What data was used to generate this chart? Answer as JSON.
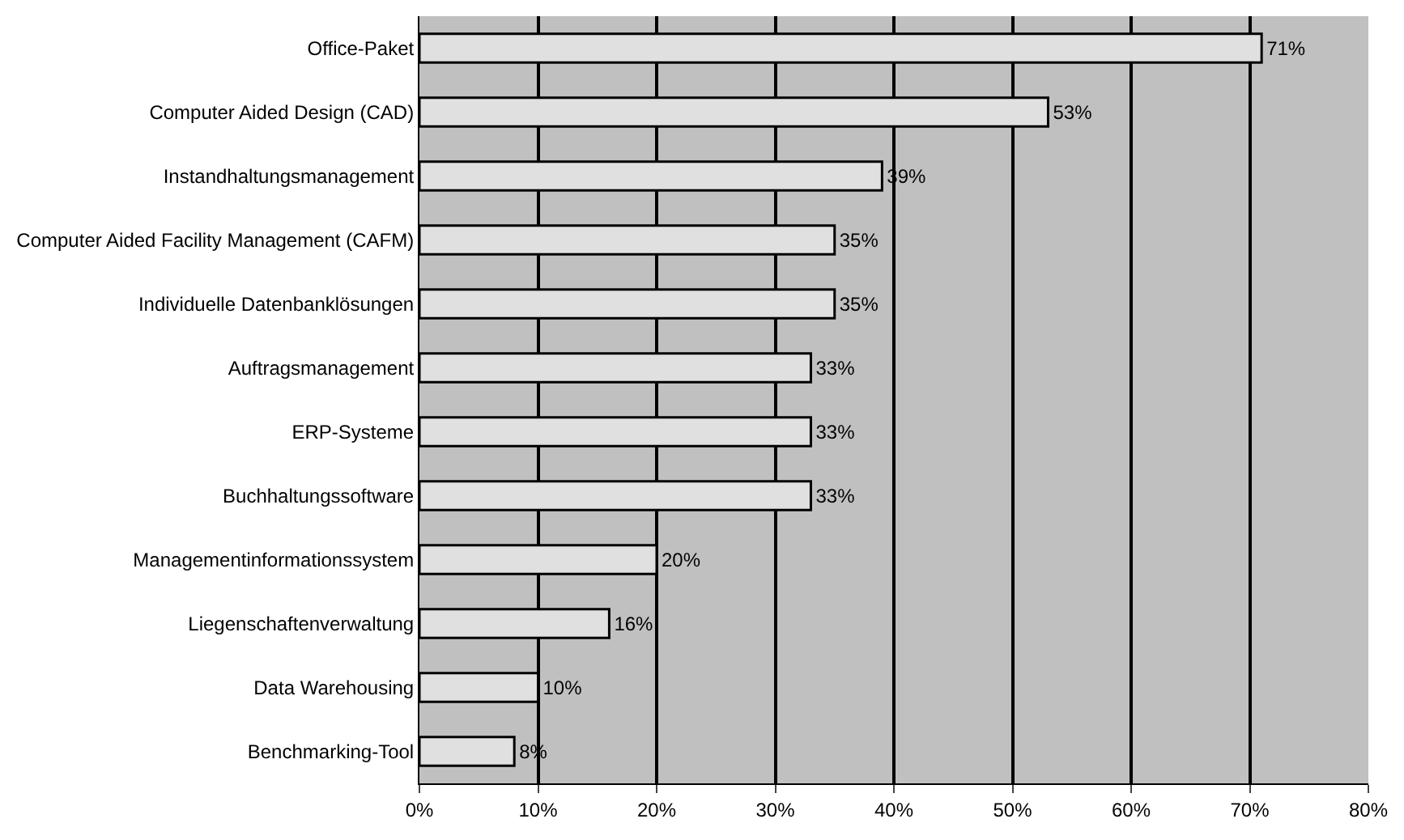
{
  "chart_data": {
    "type": "bar",
    "orientation": "horizontal",
    "categories": [
      "Office-Paket",
      "Computer Aided Design (CAD)",
      "Instandhaltungsmanagement",
      "Computer Aided Facility Management (CAFM)",
      "Individuelle Datenbanklösungen",
      "Auftragsmanagement",
      "ERP-Systeme",
      "Buchhaltungssoftware",
      "Managementinformationssystem",
      "Liegenschaftenverwaltung",
      "Data Warehousing",
      "Benchmarking-Tool"
    ],
    "values": [
      71,
      53,
      39,
      35,
      35,
      33,
      33,
      33,
      20,
      16,
      10,
      8
    ],
    "value_labels": [
      "71%",
      "53%",
      "39%",
      "35%",
      "35%",
      "33%",
      "33%",
      "33%",
      "20%",
      "16%",
      "10%",
      "8%"
    ],
    "color": "#e0e0e0",
    "xlim": [
      0,
      80
    ],
    "xticks": [
      {
        "value": 0,
        "label": "0%"
      },
      {
        "value": 10,
        "label": "10%"
      },
      {
        "value": 20,
        "label": "20%"
      },
      {
        "value": 30,
        "label": "30%"
      },
      {
        "value": 40,
        "label": "40%"
      },
      {
        "value": 50,
        "label": "50%"
      },
      {
        "value": 60,
        "label": "60%"
      },
      {
        "value": 70,
        "label": "70%"
      },
      {
        "value": 80,
        "label": "80%"
      }
    ],
    "grid": "x",
    "legend": false
  }
}
